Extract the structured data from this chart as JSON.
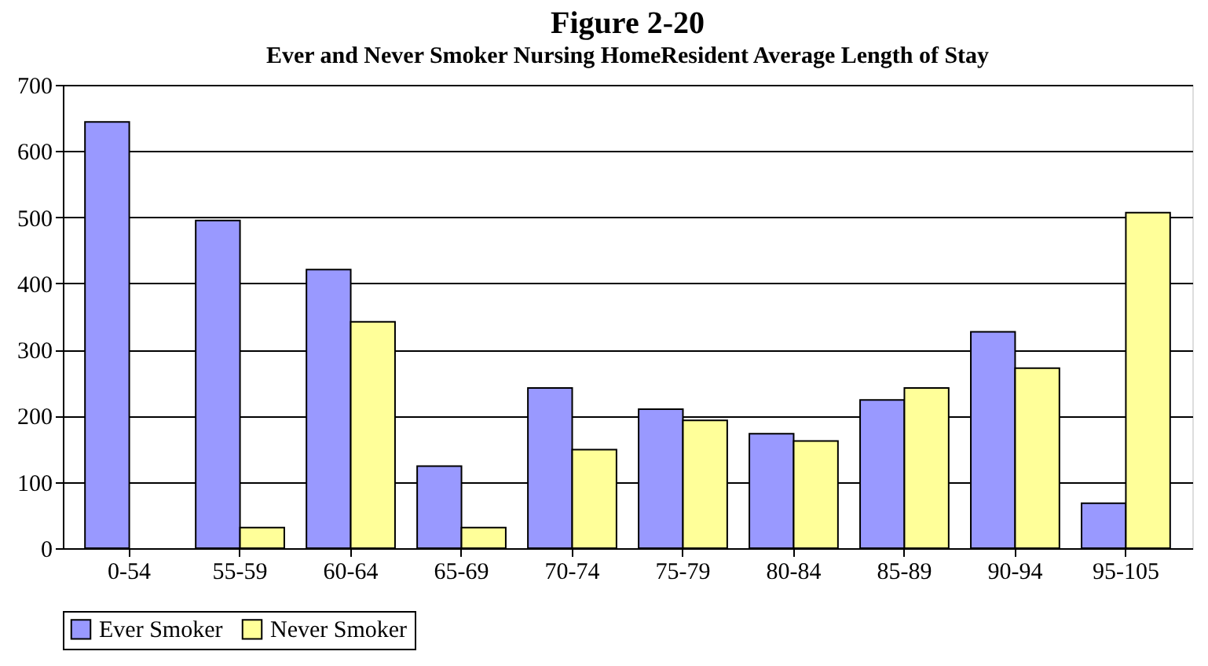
{
  "chart_data": {
    "type": "bar",
    "title": "Figure 2-20",
    "subtitle": "Ever and Never Smoker Nursing HomeResident Average Length of Stay",
    "categories": [
      "0-54",
      "55-59",
      "60-64",
      "65-69",
      "70-74",
      "75-79",
      "80-84",
      "85-89",
      "90-94",
      "95-105"
    ],
    "series": [
      {
        "name": "Ever Smoker",
        "color": "#9999ff",
        "values": [
          644,
          495,
          421,
          124,
          242,
          210,
          173,
          224,
          327,
          68
        ]
      },
      {
        "name": "Never Smoker",
        "color": "#ffff99",
        "values": [
          null,
          31,
          342,
          31,
          149,
          193,
          162,
          242,
          272,
          507
        ]
      }
    ],
    "ylim": [
      0,
      700
    ],
    "yticks": [
      0,
      100,
      200,
      300,
      400,
      500,
      600,
      700
    ],
    "grid": "y",
    "legend": "bottom"
  }
}
